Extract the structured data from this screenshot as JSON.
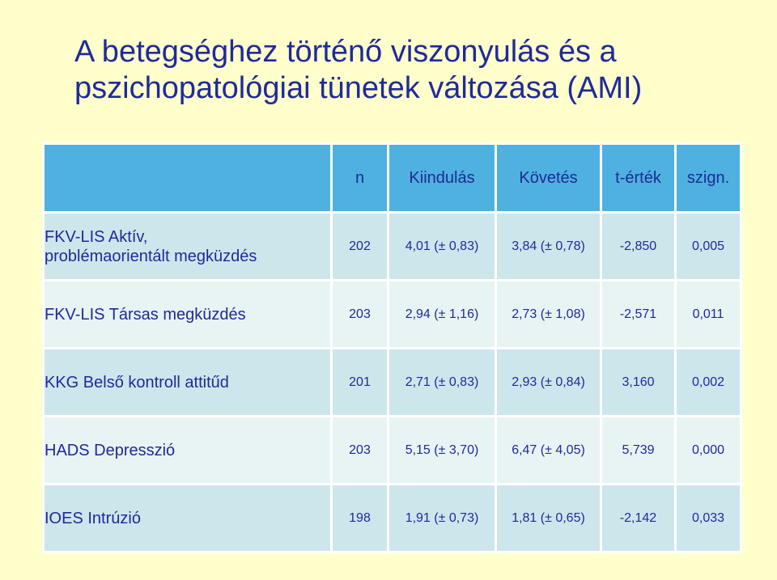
{
  "title": {
    "line1": "A betegséghez történő viszonyulás és a",
    "line2": "pszichopatológiai tünetek változása (AMI)"
  },
  "table": {
    "headers": [
      "n",
      "Kiindulás",
      "Követés",
      "t-érték",
      "szign."
    ],
    "rows": [
      {
        "label_line1": "FKV-LIS Aktív,",
        "label_line2": "problémaorientált megküzdés",
        "n": "202",
        "baseline": "4,01 (± 0,83)",
        "followup": "3,84 (± 0,78)",
        "t": "-2,850",
        "sig": "0,005"
      },
      {
        "label_line1": "FKV-LIS Társas megküzdés",
        "label_line2": "",
        "n": "203",
        "baseline": "2,94 (± 1,16)",
        "followup": "2,73 (± 1,08)",
        "t": "-2,571",
        "sig": "0,011"
      },
      {
        "label_line1": "KKG Belső kontroll attitűd",
        "label_line2": "",
        "n": "201",
        "baseline": "2,71 (± 0,83)",
        "followup": "2,93 (± 0,84)",
        "t": "3,160",
        "sig": "0,002"
      },
      {
        "label_line1": "HADS Depresszió",
        "label_line2": "",
        "n": "203",
        "baseline": "5,15 (± 3,70)",
        "followup": "6,47 (± 4,05)",
        "t": "5,739",
        "sig": "0,000"
      },
      {
        "label_line1": "IOES Intrúzió",
        "label_line2": "",
        "n": "198",
        "baseline": "1,91 (± 0,73)",
        "followup": "1,81 (± 0,65)",
        "t": "-2,142",
        "sig": "0,033"
      }
    ]
  },
  "colors": {
    "title": "#1f2a9a",
    "background": "#ffffcc",
    "header_fill": "#4fb1e0",
    "row_fill_a": "#cde6ec",
    "row_fill_b": "#e8f3f4"
  }
}
